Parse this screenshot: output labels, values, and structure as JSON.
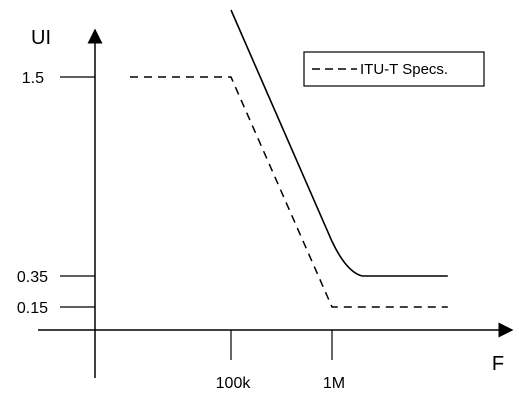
{
  "chart_data": {
    "type": "line",
    "title": "",
    "xlabel": "F",
    "ylabel": "UI",
    "x_scale": "log",
    "x_ticks": [
      {
        "label": "100k",
        "value": 100000
      },
      {
        "label": "1M",
        "value": 1000000
      }
    ],
    "y_ticks": [
      {
        "label": "1.5",
        "value": 1.5
      },
      {
        "label": "0.35",
        "value": 0.35
      },
      {
        "label": "0.15",
        "value": 0.15
      }
    ],
    "xlim": [
      10000,
      14000000
    ],
    "ylim": [
      0,
      2.0
    ],
    "grid": false,
    "legend_position": "top-right",
    "series": [
      {
        "name": "ITU-T Specs.",
        "style": "dashed",
        "color": "#000000",
        "points": [
          {
            "x": 10000,
            "y": 1.5
          },
          {
            "x": 100000,
            "y": 1.5
          },
          {
            "x": 1000000,
            "y": 0.15
          },
          {
            "x": 14000000,
            "y": 0.15
          }
        ]
      },
      {
        "name": "",
        "style": "solid",
        "color": "#000000",
        "points": [
          {
            "x": 100000,
            "y": 2.0
          },
          {
            "x": 1000000,
            "y": 0.55
          },
          {
            "x": 1400000,
            "y": 0.37
          },
          {
            "x": 2000000,
            "y": 0.35
          },
          {
            "x": 14000000,
            "y": 0.35
          }
        ]
      }
    ]
  }
}
